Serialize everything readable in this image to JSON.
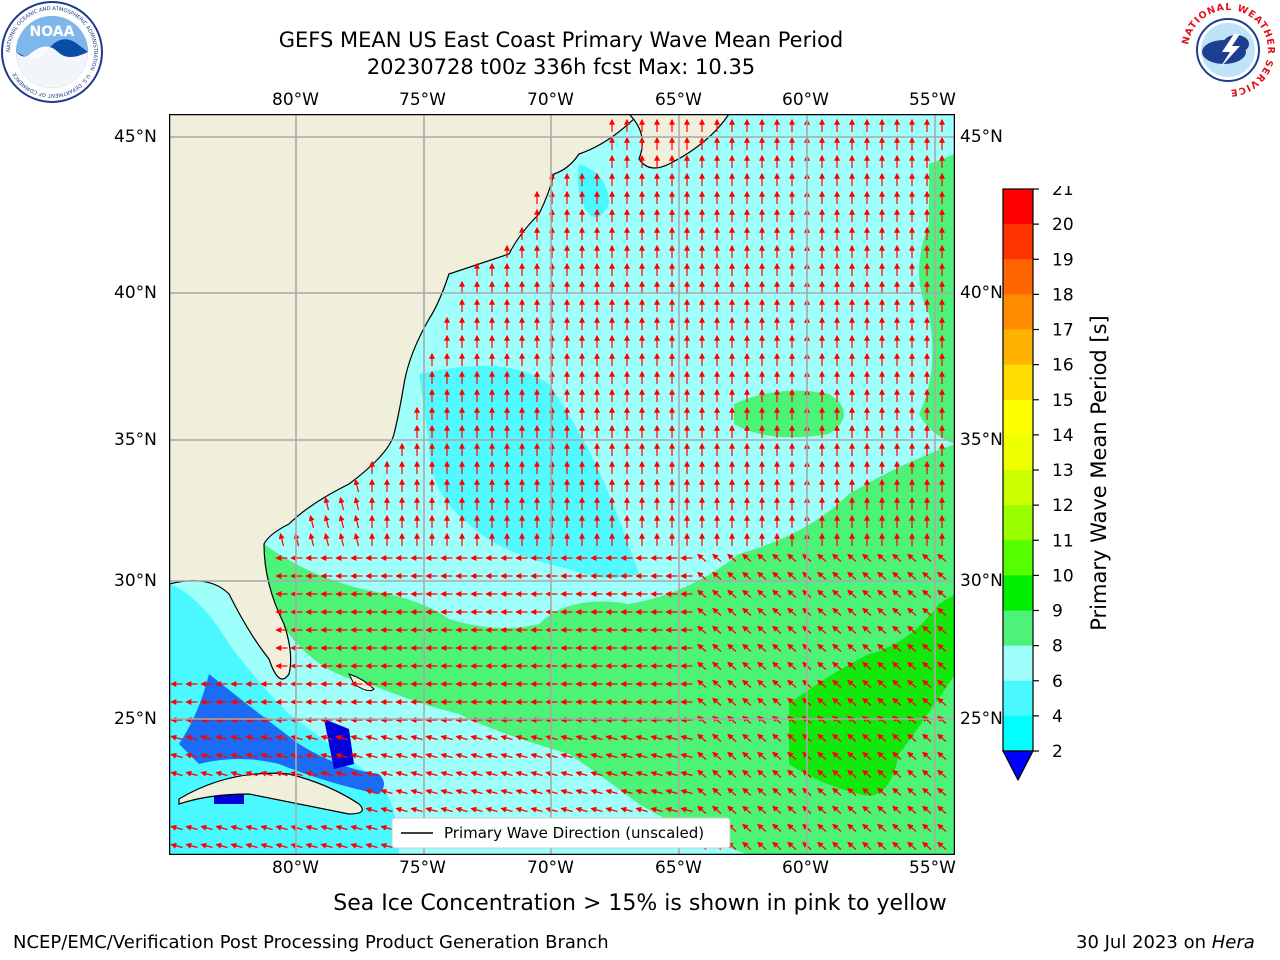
{
  "title_line1": "GEFS MEAN US East Coast Primary Wave Mean Period",
  "title_line2": "20230728 t00z 336h fcst   Max: 10.35",
  "noaa_logo": {
    "name": "noaa-logo-icon",
    "text": "NOAA",
    "ring_text": "NATIONAL OCEANIC AND ATMOSPHERIC ADMINISTRATION · U.S. DEPARTMENT OF COMMERCE"
  },
  "nws_logo": {
    "name": "nws-logo-icon",
    "ring_text": "NATIONAL WEATHER SERVICE"
  },
  "map": {
    "lon_labels": [
      "80°W",
      "75°W",
      "70°W",
      "65°W",
      "60°W",
      "55°W"
    ],
    "lat_labels": [
      "45°N",
      "40°N",
      "35°N",
      "30°N",
      "25°N"
    ],
    "legend_label": "Primary Wave Direction (unscaled)",
    "land_color": "#efefdc",
    "ocean_light_color": "#9ffffb",
    "ocean_cyan_color": "#49f9ff",
    "green_color": "#4df279",
    "bright_green_color": "#11e80d",
    "blue_color": "#1a6cf5",
    "arrow_color": "#ff0000"
  },
  "colorbar": {
    "label": "Primary Wave Mean Period [s]",
    "ticks": [
      "21",
      "20",
      "19",
      "18",
      "17",
      "16",
      "15",
      "14",
      "13",
      "12",
      "11",
      "10",
      "9",
      "8",
      "6",
      "4",
      "2"
    ],
    "colors": [
      "#ff0000",
      "#ff3300",
      "#ff6600",
      "#ff8c00",
      "#ffb200",
      "#ffdd00",
      "#ffff00",
      "#eeff00",
      "#ccff00",
      "#99ff00",
      "#55ff00",
      "#00ee00",
      "#4df279",
      "#9ffffb",
      "#49f9ff",
      "#00ffff",
      "#0077ff",
      "#0000ff"
    ]
  },
  "footer": {
    "sea_ice_note": "Sea Ice Concentration > 15% is shown in pink to yellow",
    "left": "NCEP/EMC/Verification Post Processing Product Generation Branch",
    "right_date": "30 Jul 2023 on ",
    "right_machine": "Hera"
  }
}
